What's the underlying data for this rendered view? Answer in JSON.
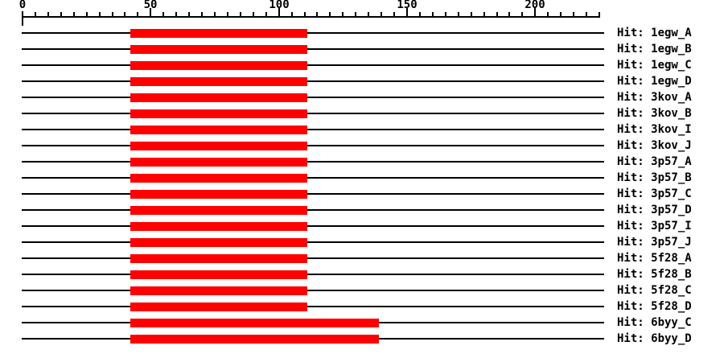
{
  "chart_data": {
    "type": "bar",
    "subtype": "horizontal-alignment-overview",
    "title": "",
    "axis": {
      "min": 0,
      "max": 225,
      "minor_tick_step": 5,
      "major_tick_step": 50,
      "major_ticks": [
        {
          "value": 0,
          "label": "0"
        },
        {
          "value": 50,
          "label": "50"
        },
        {
          "value": 100,
          "label": "100"
        },
        {
          "value": 150,
          "label": "150"
        },
        {
          "value": 200,
          "label": "200"
        }
      ]
    },
    "query_range": [
      0,
      227
    ],
    "bar_color": "#ff0000",
    "line_color": "#000000",
    "background_color": "#ffffff",
    "hits": [
      {
        "label": "Hit: 1egw_A",
        "start": 42,
        "end": 111
      },
      {
        "label": "Hit: 1egw_B",
        "start": 42,
        "end": 111
      },
      {
        "label": "Hit: 1egw_C",
        "start": 42,
        "end": 111
      },
      {
        "label": "Hit: 1egw_D",
        "start": 42,
        "end": 111
      },
      {
        "label": "Hit: 3kov_A",
        "start": 42,
        "end": 111
      },
      {
        "label": "Hit: 3kov_B",
        "start": 42,
        "end": 111
      },
      {
        "label": "Hit: 3kov_I",
        "start": 42,
        "end": 111
      },
      {
        "label": "Hit: 3kov_J",
        "start": 42,
        "end": 111
      },
      {
        "label": "Hit: 3p57_A",
        "start": 42,
        "end": 111
      },
      {
        "label": "Hit: 3p57_B",
        "start": 42,
        "end": 111
      },
      {
        "label": "Hit: 3p57_C",
        "start": 42,
        "end": 111
      },
      {
        "label": "Hit: 3p57_D",
        "start": 42,
        "end": 111
      },
      {
        "label": "Hit: 3p57_I",
        "start": 42,
        "end": 111
      },
      {
        "label": "Hit: 3p57_J",
        "start": 42,
        "end": 111
      },
      {
        "label": "Hit: 5f28_A",
        "start": 42,
        "end": 111
      },
      {
        "label": "Hit: 5f28_B",
        "start": 42,
        "end": 111
      },
      {
        "label": "Hit: 5f28_C",
        "start": 42,
        "end": 111
      },
      {
        "label": "Hit: 5f28_D",
        "start": 42,
        "end": 111
      },
      {
        "label": "Hit: 6byy_C",
        "start": 42,
        "end": 139
      },
      {
        "label": "Hit: 6byy_D",
        "start": 42,
        "end": 139
      }
    ]
  }
}
